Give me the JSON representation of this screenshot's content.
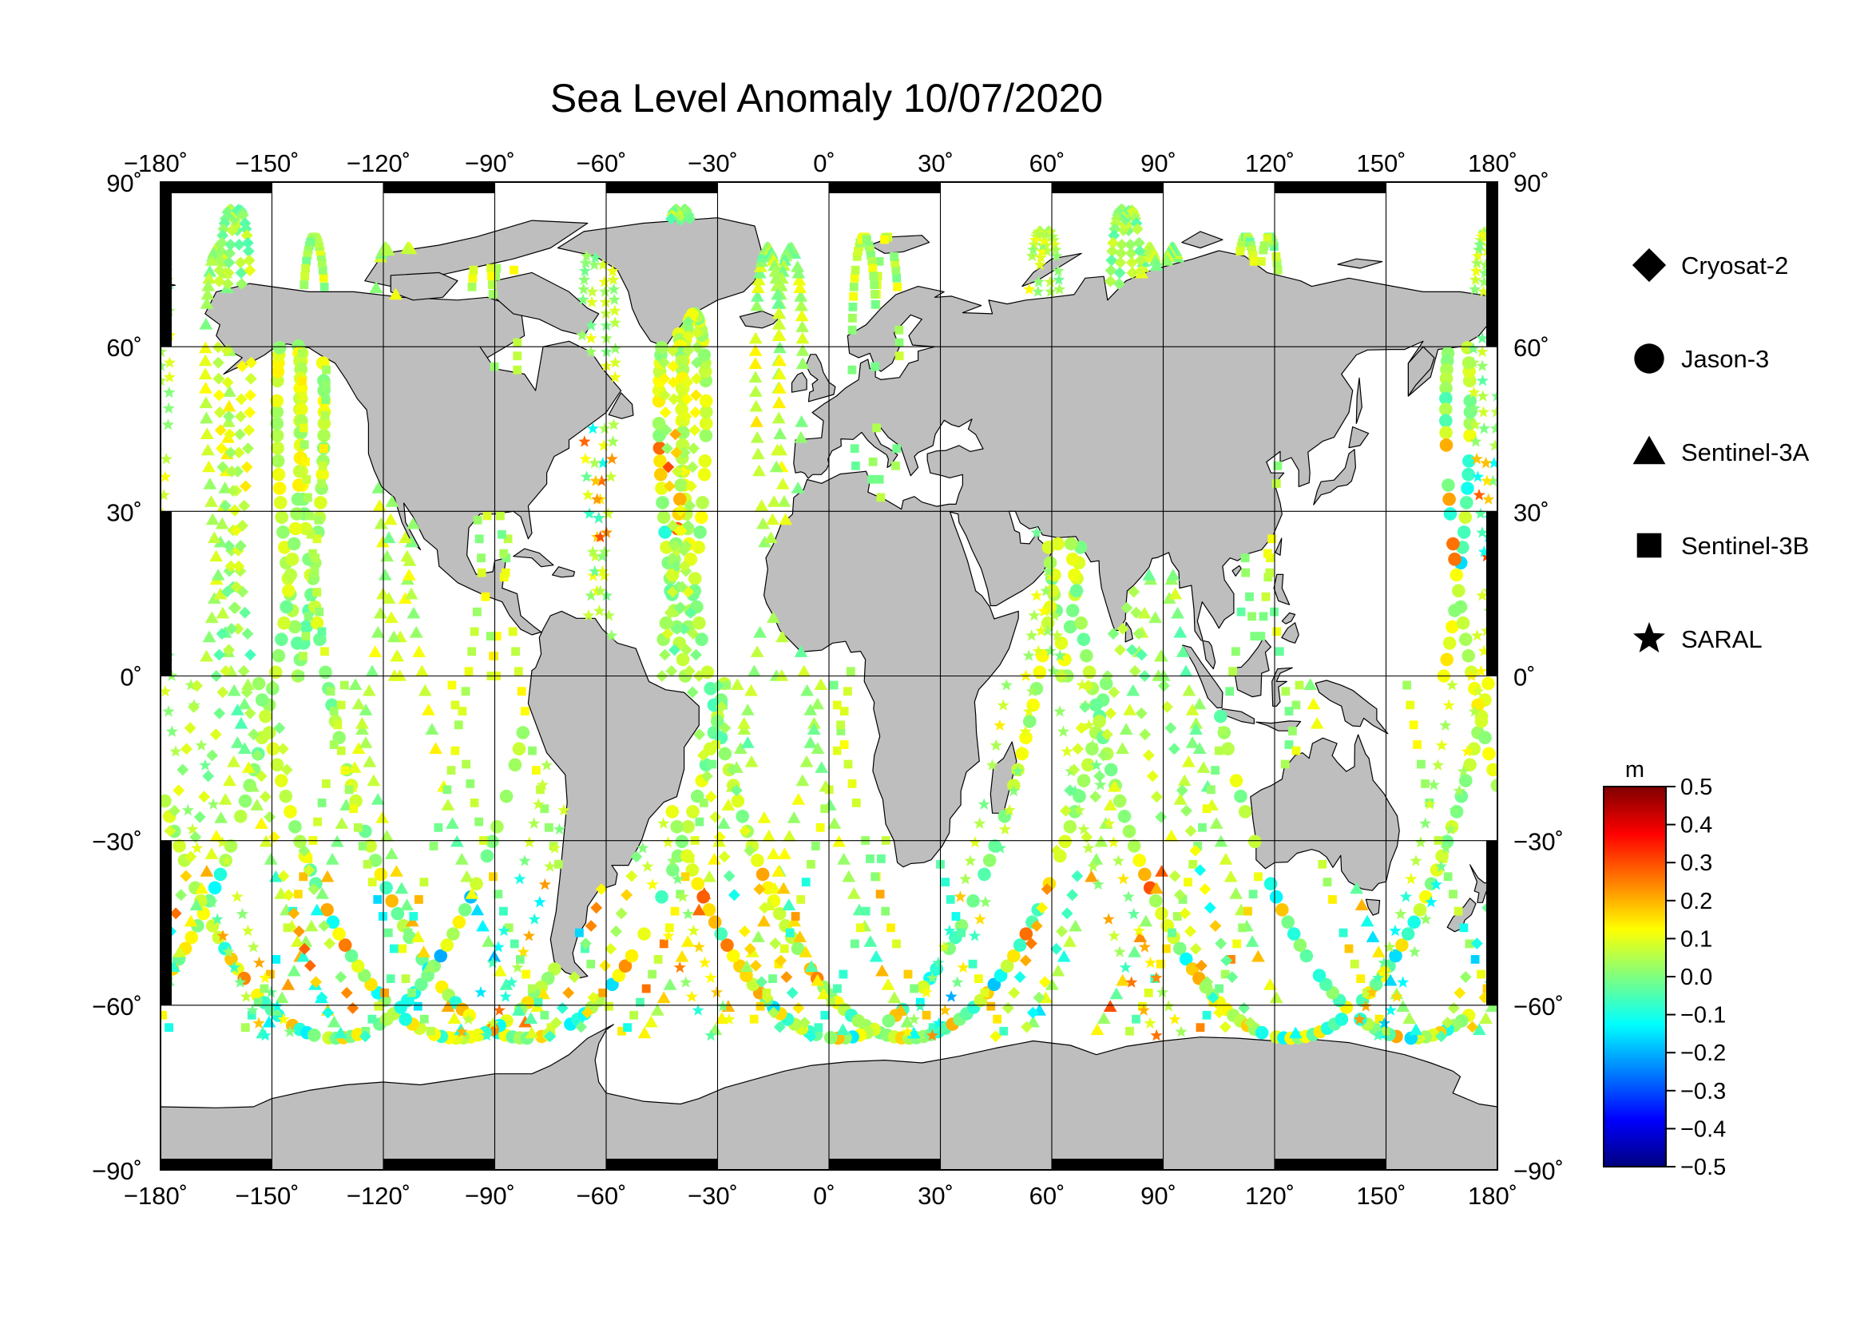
{
  "title": "Sea Level Anomaly 10/07/2020",
  "map": {
    "lon_range": [
      -180,
      180
    ],
    "lat_range": [
      -90,
      90
    ],
    "lon_ticks": [
      "−180˚",
      "−150˚",
      "−120˚",
      "−90˚",
      "−60˚",
      "−30˚",
      "0˚",
      "30˚",
      "60˚",
      "90˚",
      "120˚",
      "150˚",
      "180˚"
    ],
    "lat_ticks_left": [
      "90˚",
      "60˚",
      "30˚",
      "0˚",
      "−30˚",
      "−60˚",
      "−90˚"
    ],
    "lat_ticks_right": [
      "90˚",
      "60˚",
      "30˚",
      "0˚",
      "−30˚",
      "−60˚",
      "−90˚"
    ],
    "grid": true,
    "projection": "equirectangular",
    "land_color": "#bebebe",
    "ocean_color": "#ffffff"
  },
  "legend": {
    "placement": "right",
    "items": [
      {
        "label": "Cryosat-2",
        "marker": "diamond"
      },
      {
        "label": "Jason-3",
        "marker": "circle"
      },
      {
        "label": "Sentinel-3A",
        "marker": "triangle"
      },
      {
        "label": "Sentinel-3B",
        "marker": "square"
      },
      {
        "label": "SARAL",
        "marker": "star"
      }
    ]
  },
  "colorbar": {
    "unit": "m",
    "min": -0.5,
    "max": 0.5,
    "tick_labels": [
      "0.5",
      "0.4",
      "0.3",
      "0.2",
      "0.1",
      "0.0",
      "−0.1",
      "−0.2",
      "−0.3",
      "−0.4",
      "−0.5"
    ],
    "colors": [
      "#00007f",
      "#0000ff",
      "#007fff",
      "#00ffff",
      "#7fff7f",
      "#ffff00",
      "#ff7f00",
      "#ff0000",
      "#7f0000"
    ]
  }
}
